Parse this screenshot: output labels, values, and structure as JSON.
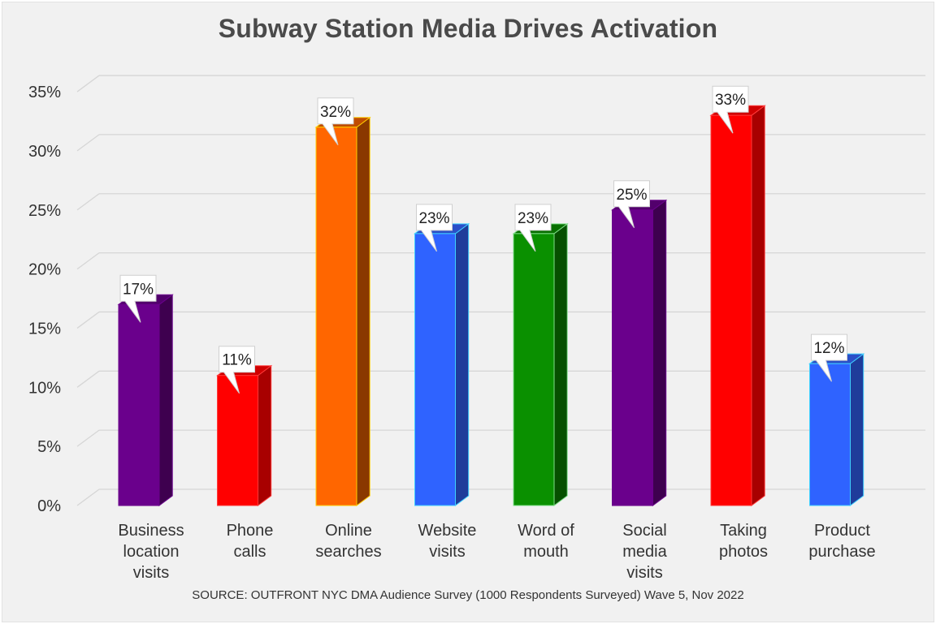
{
  "chart_data": {
    "type": "bar",
    "title": "Subway Station Media Drives Activation",
    "source": "SOURCE: OUTFRONT NYC DMA Audience Survey (1000 Respondents Surveyed) Wave 5, Nov 2022",
    "categories": [
      [
        "Business",
        "location",
        "visits"
      ],
      [
        "Phone",
        "calls"
      ],
      [
        "Online",
        "searches"
      ],
      [
        "Website",
        "visits"
      ],
      [
        "Word of",
        "mouth"
      ],
      [
        "Social",
        "media",
        "visits"
      ],
      [
        "Taking",
        "photos"
      ],
      [
        "Product",
        "purchase"
      ]
    ],
    "values": [
      17,
      11,
      32,
      23,
      23,
      25,
      33,
      12
    ],
    "data_labels": [
      "17%",
      "11%",
      "32%",
      "23%",
      "23%",
      "25%",
      "33%",
      "12%"
    ],
    "colors": [
      {
        "front": "#6a008c",
        "side": "#3e004f",
        "top": "#52006c",
        "edge": "#6a008c"
      },
      {
        "front": "#ff0000",
        "side": "#a80000",
        "top": "#d00000",
        "edge": "#ff3a3a"
      },
      {
        "front": "#ff6600",
        "side": "#8a3800",
        "top": "#c04c00",
        "edge": "#ffcc00"
      },
      {
        "front": "#2f63ff",
        "side": "#1f3c9a",
        "top": "#2a4fc8",
        "edge": "#3fd0ff"
      },
      {
        "front": "#0a9000",
        "side": "#065000",
        "top": "#087000",
        "edge": "#7fe08a"
      },
      {
        "front": "#6a008c",
        "side": "#3e004f",
        "top": "#52006c",
        "edge": "#6a008c"
      },
      {
        "front": "#ff0000",
        "side": "#a80000",
        "top": "#d00000",
        "edge": "#ff3a3a"
      },
      {
        "front": "#2f63ff",
        "side": "#1f3c9a",
        "top": "#2a4fc8",
        "edge": "#3fd0ff"
      }
    ],
    "yticks": [
      "0%",
      "5%",
      "10%",
      "15%",
      "20%",
      "25%",
      "30%",
      "35%"
    ],
    "ylim": [
      0,
      35
    ],
    "grid": true,
    "legend": "none"
  }
}
